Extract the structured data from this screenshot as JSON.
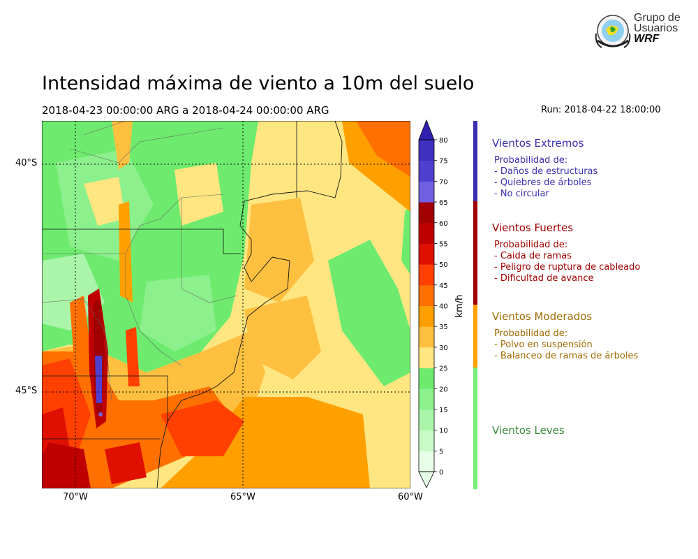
{
  "logo": {
    "line1": "Grupo de",
    "line2": "Usuarios",
    "line3": "WRF"
  },
  "header": {
    "title": "Intensidad máxima de viento a 10m del suelo",
    "period": "2018-04-23 00:00:00 ARG  a  2018-04-24 00:00:00 ARG",
    "run": "Run: 2018-04-22 18:00:00"
  },
  "map": {
    "lat_labels": [
      "40°S",
      "45°S"
    ],
    "lon_labels": [
      "70°W",
      "65°W",
      "60°W"
    ]
  },
  "colorbar": {
    "unit": "km/h",
    "ticks": [
      "0",
      "5",
      "10",
      "15",
      "20",
      "25",
      "30",
      "35",
      "40",
      "45",
      "50",
      "55",
      "60",
      "65",
      "70",
      "75",
      "80"
    ],
    "colors": [
      "#e6ffe6",
      "#c8fac8",
      "#aaf5aa",
      "#8cf08c",
      "#6eeb6e",
      "#ffe680",
      "#ffc040",
      "#ffa000",
      "#ff7000",
      "#ff4000",
      "#e01000",
      "#c00000",
      "#a00000",
      "#7060e0",
      "#5040d0",
      "#4030c0",
      "#3020b0"
    ]
  },
  "categories": [
    {
      "title": "Vientos Extremos",
      "color": "#3a2fb0",
      "bar_color": "#3a2fb0",
      "lines": [
        "Probabilidad de:",
        "- Daños de estructuras",
        "- Quiebres de árboles",
        "- No circular"
      ]
    },
    {
      "title": "Vientos Fuertes",
      "color": "#a00000",
      "bar_color": "#a00000",
      "lines": [
        "Probabilidad de:",
        "- Caida de ramas",
        "- Peligro de ruptura de cableado",
        "- Dificultad de avance"
      ]
    },
    {
      "title": "Vientos Moderados",
      "color": "#a06a00",
      "bar_color": "#ffa000",
      "lines": [
        "Probabilidad de:",
        "- Polvo en suspensión",
        "- Balanceo de ramas de árboles"
      ]
    },
    {
      "title": "Vientos Leves",
      "color": "#3a8a3a",
      "bar_color": "#77ee77",
      "lines": []
    }
  ]
}
